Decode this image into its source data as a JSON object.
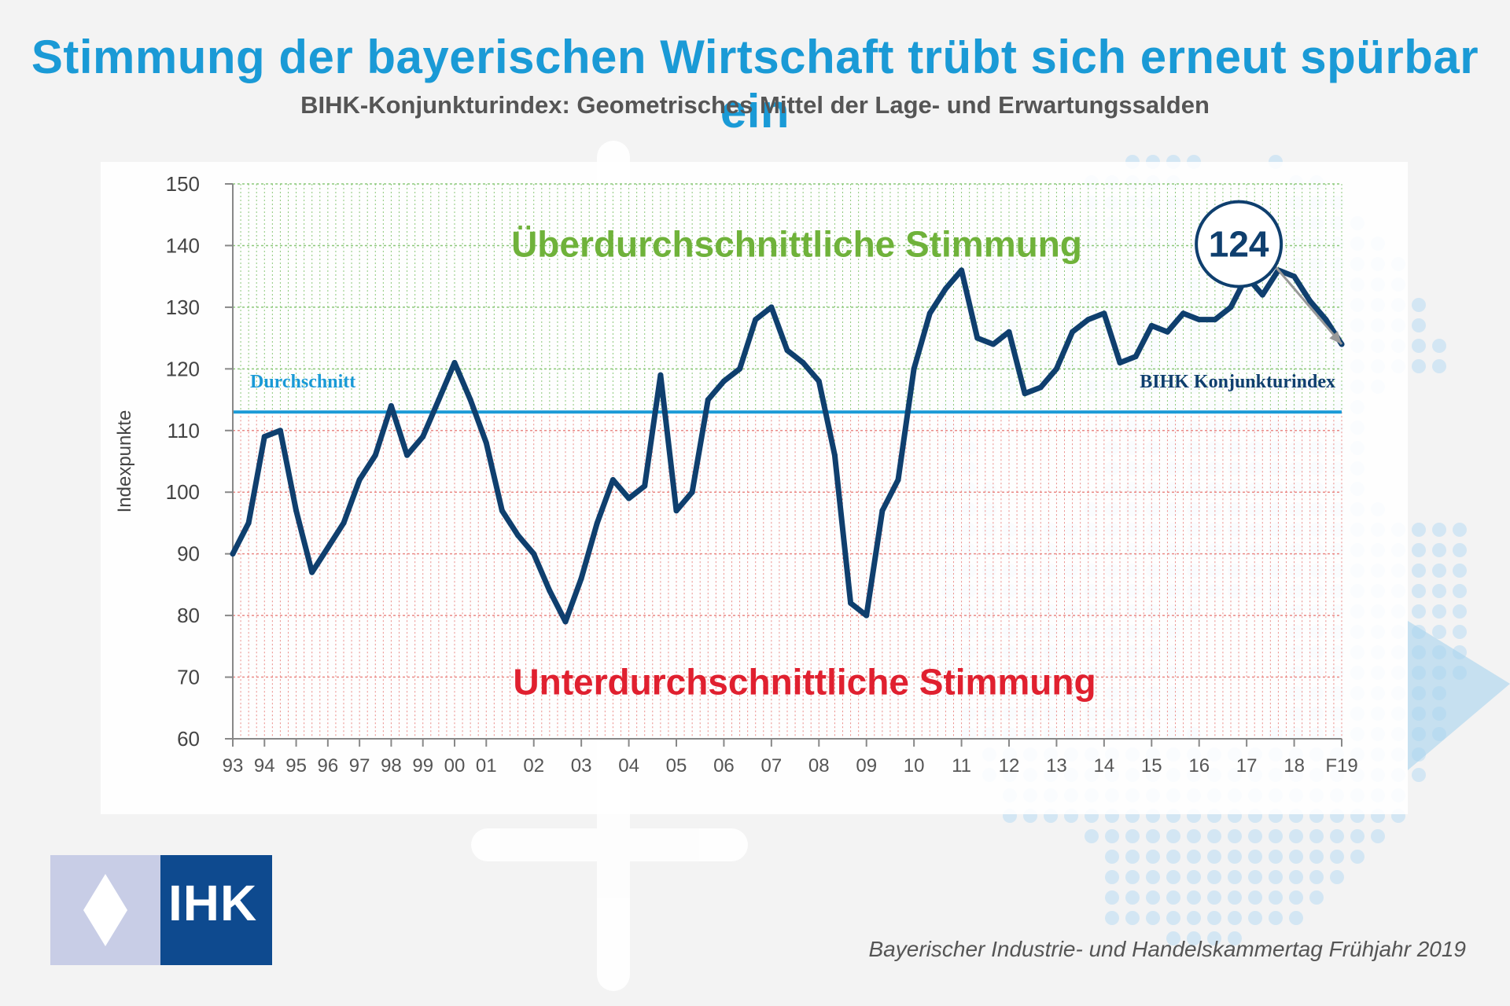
{
  "header": {
    "title": "Stimmung der bayerischen Wirtschaft trübt sich erneut spürbar ein",
    "subtitle": "BIHK-Konjunkturindex: Geometrisches Mittel der Lage- und Erwartungssalden"
  },
  "colors": {
    "title": "#1a9ad6",
    "line": "#0f3f6e",
    "average": "#1a9ad6",
    "above_zone": "#6fb23a",
    "below_zone": "#e0202f",
    "grid_above": "#8cc87a",
    "grid_below": "#ea8a86"
  },
  "chart_data": {
    "type": "line",
    "ylabel": "Indexpunkte",
    "ylim": [
      60,
      150
    ],
    "yticks": [
      60,
      70,
      80,
      90,
      100,
      110,
      120,
      130,
      140,
      150
    ],
    "x_tick_labels": [
      {
        "label": "93",
        "x": 1993.0
      },
      {
        "label": "94",
        "x": 1994.0
      },
      {
        "label": "95",
        "x": 1995.0
      },
      {
        "label": "96",
        "x": 1996.0
      },
      {
        "label": "97",
        "x": 1997.0
      },
      {
        "label": "98",
        "x": 1998.0
      },
      {
        "label": "99",
        "x": 1999.0
      },
      {
        "label": "00",
        "x": 2000.0
      },
      {
        "label": "01",
        "x": 2001.0
      },
      {
        "label": "02",
        "x": 2002.5
      },
      {
        "label": "03",
        "x": 2004.0
      },
      {
        "label": "04",
        "x": 2005.5
      },
      {
        "label": "05",
        "x": 2007.0
      },
      {
        "label": "06",
        "x": 2008.5
      },
      {
        "label": "07",
        "x": 2010.0
      },
      {
        "label": "08",
        "x": 2011.5
      },
      {
        "label": "09",
        "x": 2013.0
      },
      {
        "label": "10",
        "x": 2014.5
      },
      {
        "label": "11",
        "x": 2016.0
      },
      {
        "label": "12",
        "x": 2017.5
      },
      {
        "label": "13",
        "x": 2019.0
      },
      {
        "label": "14",
        "x": 2020.5
      },
      {
        "label": "15",
        "x": 2022.0
      },
      {
        "label": "16",
        "x": 2023.5
      },
      {
        "label": "17",
        "x": 2025.0
      },
      {
        "label": "18",
        "x": 2026.5
      },
      {
        "label": "F19",
        "x": 2028.0
      }
    ],
    "xlim": [
      1993.0,
      2028.0
    ],
    "grid": true,
    "average_value": 113,
    "average_label": "Durchschnitt",
    "series_label": "BIHK Konjunkturindex",
    "above_label": "Überdurchschnittliche Stimmung",
    "below_label": "Unterdurchschnittliche Stimmung",
    "callout_value": "124",
    "series": [
      {
        "name": "BIHK Konjunkturindex",
        "points": [
          [
            1993.0,
            90
          ],
          [
            1993.5,
            95
          ],
          [
            1994.0,
            109
          ],
          [
            1994.5,
            110
          ],
          [
            1995.0,
            97
          ],
          [
            1995.5,
            87
          ],
          [
            1996.0,
            91
          ],
          [
            1996.5,
            95
          ],
          [
            1997.0,
            102
          ],
          [
            1997.5,
            106
          ],
          [
            1998.0,
            114
          ],
          [
            1998.5,
            106
          ],
          [
            1999.0,
            109
          ],
          [
            1999.5,
            115
          ],
          [
            2000.0,
            121
          ],
          [
            2000.5,
            115
          ],
          [
            2001.0,
            108
          ],
          [
            2001.5,
            97
          ],
          [
            2002.0,
            93
          ],
          [
            2002.5,
            90
          ],
          [
            2003.0,
            84
          ],
          [
            2003.5,
            79
          ],
          [
            2004.0,
            86
          ],
          [
            2004.5,
            95
          ],
          [
            2005.0,
            102
          ],
          [
            2005.5,
            99
          ],
          [
            2006.0,
            101
          ],
          [
            2006.5,
            119
          ],
          [
            2007.0,
            97
          ],
          [
            2007.5,
            100
          ],
          [
            2008.0,
            115
          ],
          [
            2008.5,
            118
          ],
          [
            2009.0,
            120
          ],
          [
            2009.5,
            128
          ],
          [
            2010.0,
            130
          ],
          [
            2010.5,
            123
          ],
          [
            2011.0,
            121
          ],
          [
            2011.5,
            118
          ],
          [
            2012.0,
            106
          ],
          [
            2012.5,
            82
          ],
          [
            2013.0,
            80
          ],
          [
            2013.5,
            97
          ],
          [
            2014.0,
            102
          ],
          [
            2014.5,
            120
          ],
          [
            2015.0,
            129
          ],
          [
            2015.5,
            133
          ],
          [
            2016.0,
            136
          ],
          [
            2016.5,
            125
          ],
          [
            2017.0,
            124
          ],
          [
            2017.5,
            126
          ],
          [
            2018.0,
            116
          ],
          [
            2018.5,
            117
          ],
          [
            2019.0,
            120
          ],
          [
            2019.5,
            126
          ],
          [
            2020.0,
            128
          ],
          [
            2020.5,
            129
          ],
          [
            2021.0,
            121
          ],
          [
            2021.5,
            122
          ],
          [
            2022.0,
            127
          ],
          [
            2022.5,
            126
          ],
          [
            2023.0,
            129
          ],
          [
            2023.5,
            128
          ],
          [
            2024.0,
            128
          ],
          [
            2024.5,
            130
          ],
          [
            2025.0,
            135
          ],
          [
            2025.5,
            132
          ],
          [
            2026.0,
            136
          ],
          [
            2026.5,
            135
          ],
          [
            2027.0,
            131
          ],
          [
            2027.5,
            128
          ],
          [
            2028.0,
            124
          ]
        ]
      }
    ]
  },
  "footer": {
    "logo_text": "IHK",
    "source": "Bayerischer Industrie- und Handelskammertag Frühjahr 2019"
  }
}
